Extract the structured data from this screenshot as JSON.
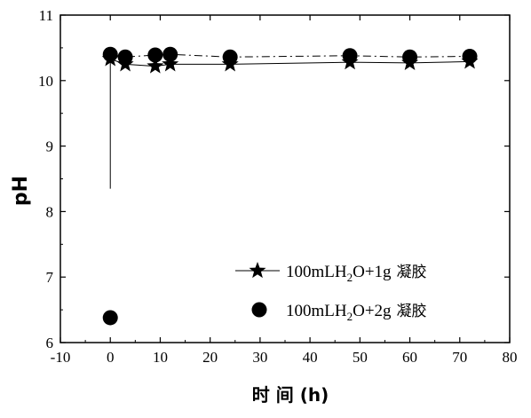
{
  "chart_data": {
    "type": "line",
    "title": "",
    "xlabel": "时 间 (h)",
    "ylabel": "pH",
    "xlim": [
      -10,
      80
    ],
    "ylim": [
      6,
      11
    ],
    "xticks": [
      -10,
      0,
      10,
      20,
      30,
      40,
      50,
      60,
      70,
      80
    ],
    "yticks": [
      6,
      7,
      8,
      9,
      10,
      11
    ],
    "grid": false,
    "legend_position": "bottom-right",
    "series": [
      {
        "name": "100mLH2O+1g 凝胶",
        "label_parts": [
          "100mLH",
          "2",
          "O+1g",
          "凝胶"
        ],
        "marker": "star",
        "line_style": "solid",
        "color": "#000000",
        "x": [
          0,
          3,
          9,
          12,
          24,
          48,
          60,
          72
        ],
        "y": [
          10.33,
          10.25,
          10.22,
          10.25,
          10.25,
          10.28,
          10.27,
          10.29
        ]
      },
      {
        "name": "100mLH2O+2g 凝胶",
        "label_parts": [
          "100mLH",
          "2",
          "O+2g",
          "凝胶"
        ],
        "marker": "circle",
        "line_style": "dash-dot",
        "color": "#000000",
        "x": [
          0,
          0,
          3,
          9,
          12,
          24,
          48,
          60,
          72
        ],
        "y": [
          6.38,
          10.4,
          10.36,
          10.39,
          10.4,
          10.36,
          10.38,
          10.36,
          10.37
        ]
      }
    ],
    "annotations": [
      {
        "type": "vertical-line",
        "x": 0,
        "y_from": 8.35,
        "y_to": 10.33
      }
    ]
  }
}
